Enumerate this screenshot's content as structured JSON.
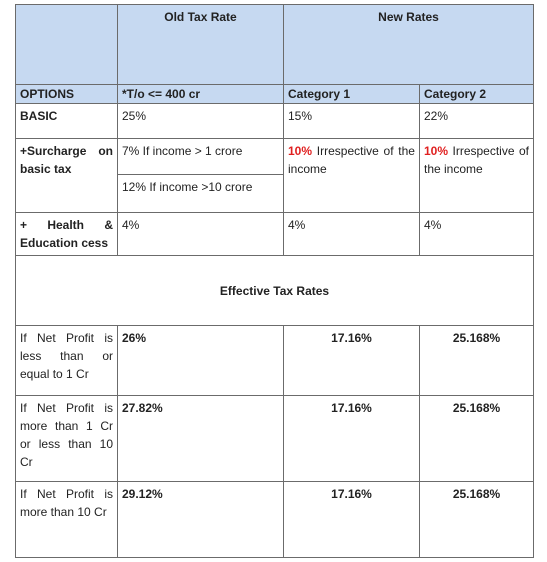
{
  "table": {
    "header": {
      "old": "Old Tax Rate",
      "new": "New Rates"
    },
    "options": [
      "OPTIONS",
      "*T/o <= 400 cr",
      "Category 1",
      "Category 2"
    ],
    "basic": [
      "BASIC",
      "25%",
      "15%",
      "22%"
    ],
    "surcharge": {
      "label": "+Surcharge on basic tax",
      "old": [
        "7% If income > 1 crore",
        "12% If income >10 crore"
      ],
      "new": [
        {
          "highlight": "10%",
          "text": "Irrespective of the income"
        },
        {
          "highlight": "10%",
          "text": "Irrespective of the income"
        }
      ]
    },
    "cess": [
      "+ Health & Education cess",
      "4%",
      "4%",
      "4%"
    ],
    "effective_title": "Effective Tax Rates",
    "effective_rows": [
      [
        "If Net Profit is less than or equal to 1 Cr",
        "26%",
        "17.16%",
        "25.168%"
      ],
      [
        "If Net Profit is more than 1 Cr or less than 10 Cr",
        "27.82%",
        "17.16%",
        "25.168%"
      ],
      [
        "If Net Profit is more than 10 Cr",
        "29.12%",
        "17.16%",
        "25.168%"
      ]
    ]
  }
}
